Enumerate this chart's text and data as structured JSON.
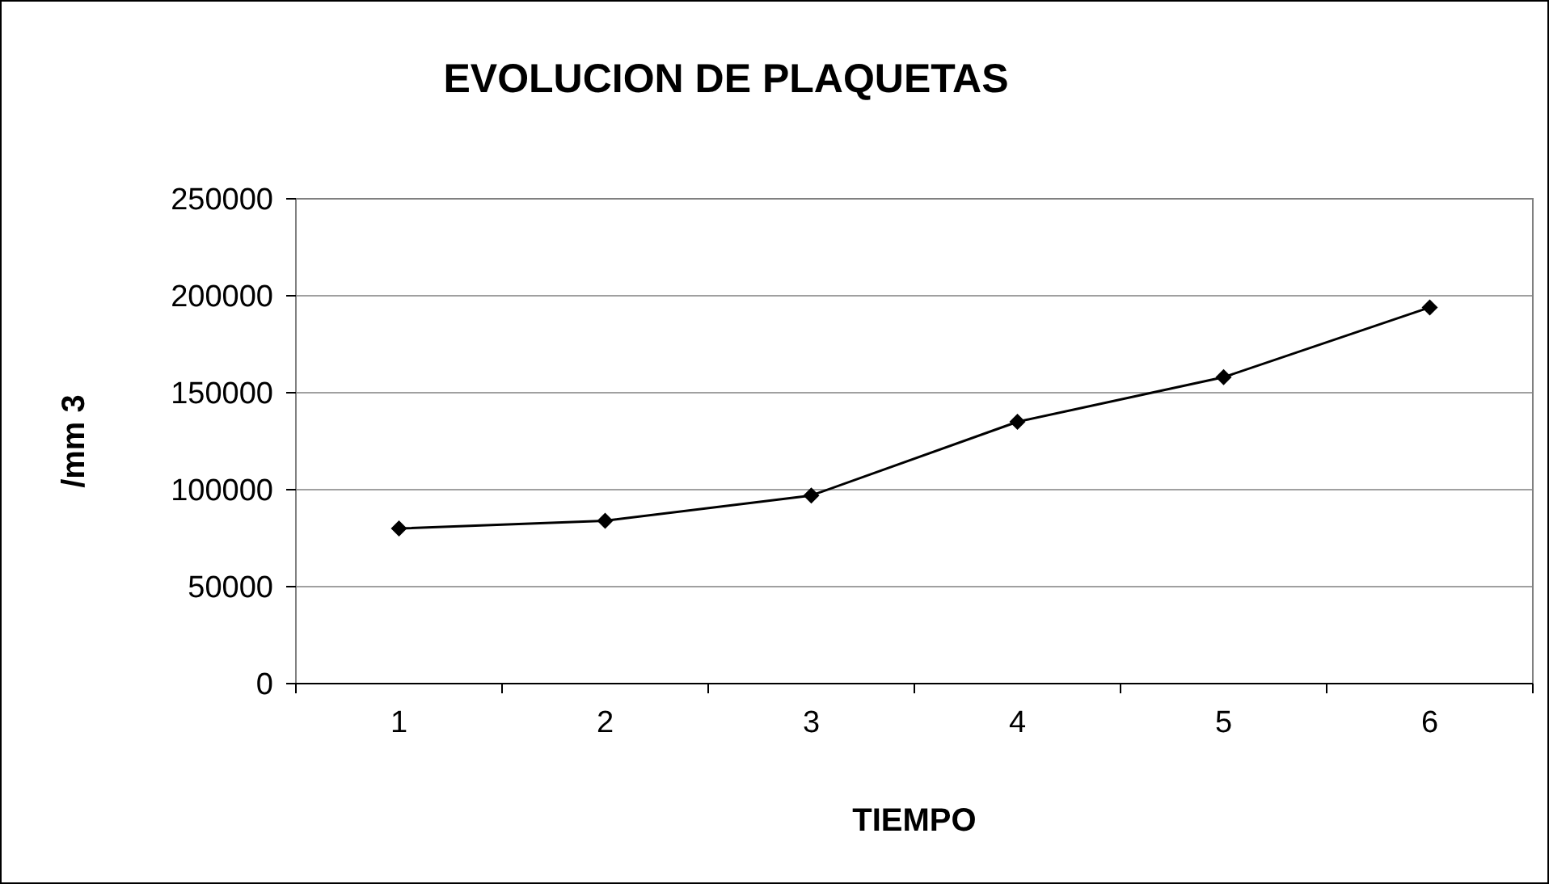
{
  "chart_data": {
    "type": "line",
    "title": "EVOLUCION DE PLAQUETAS",
    "xlabel": "TIEMPO",
    "ylabel": "/mm 3",
    "categories": [
      "1",
      "2",
      "3",
      "4",
      "5",
      "6"
    ],
    "series": [
      {
        "color": "#000000",
        "values": [
          80000,
          84000,
          97000,
          135000,
          158000,
          194000
        ]
      }
    ],
    "ylim": [
      0,
      250000
    ],
    "yticks": [
      0,
      50000,
      100000,
      150000,
      200000,
      250000
    ],
    "grid": "y",
    "marker": "diamond",
    "line_style": "solid"
  }
}
